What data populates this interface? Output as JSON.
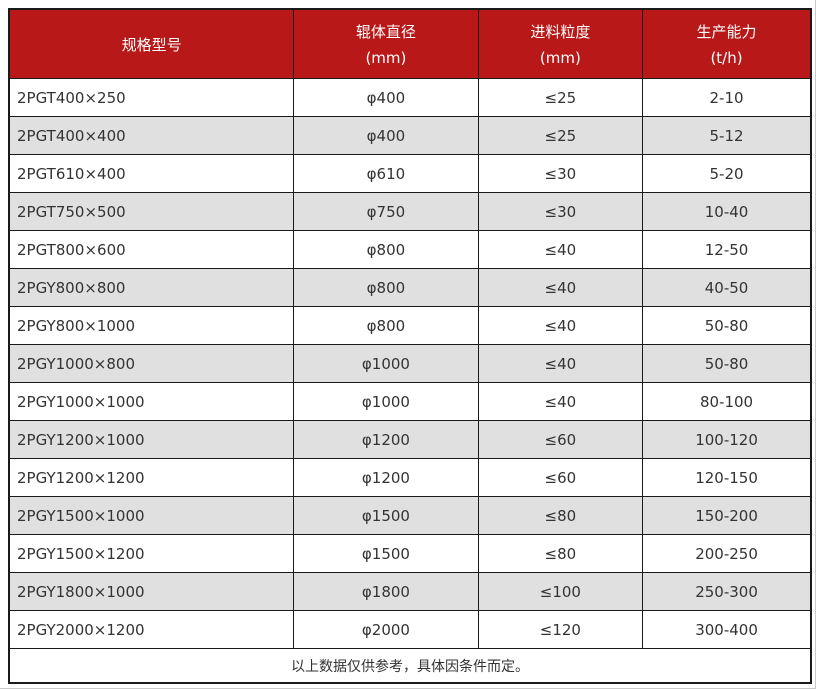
{
  "table": {
    "title_semantic": "roller-crusher-specifications",
    "columns": [
      {
        "label": "规格型号",
        "unit": ""
      },
      {
        "label": "辊体直径",
        "unit": "(mm)"
      },
      {
        "label": "进料粒度",
        "unit": "(mm)"
      },
      {
        "label": "生产能力",
        "unit": "(t/h)"
      }
    ],
    "rows": [
      [
        "2PGT400×250",
        "φ400",
        "≤25",
        "2-10"
      ],
      [
        "2PGT400×400",
        "φ400",
        "≤25",
        "5-12"
      ],
      [
        "2PGT610×400",
        "φ610",
        "≤30",
        "5-20"
      ],
      [
        "2PGT750×500",
        "φ750",
        "≤30",
        "10-40"
      ],
      [
        "2PGT800×600",
        "φ800",
        "≤40",
        "12-50"
      ],
      [
        "2PGY800×800",
        "φ800",
        "≤40",
        "40-50"
      ],
      [
        "2PGY800×1000",
        "φ800",
        "≤40",
        "50-80"
      ],
      [
        "2PGY1000×800",
        "φ1000",
        "≤40",
        "50-80"
      ],
      [
        "2PGY1000×1000",
        "φ1000",
        "≤40",
        "80-100"
      ],
      [
        "2PGY1200×1000",
        "φ1200",
        "≤60",
        "100-120"
      ],
      [
        "2PGY1200×1200",
        "φ1200",
        "≤60",
        "120-150"
      ],
      [
        "2PGY1500×1000",
        "φ1500",
        "≤80",
        "150-200"
      ],
      [
        "2PGY1500×1200",
        "φ1500",
        "≤80",
        "200-250"
      ],
      [
        "2PGY1800×1000",
        "φ1800",
        "≤100",
        "250-300"
      ],
      [
        "2PGY2000×1200",
        "φ2000",
        "≤120",
        "300-400"
      ]
    ],
    "footer": "以上数据仅供参考，具体因条件而定。",
    "colors": {
      "header_bg": "#b81818",
      "header_text": "#ffffff",
      "row_bg": "#ffffff",
      "row_alt_bg": "#e0e0e0",
      "border": "#1a1a1a",
      "text": "#333333"
    }
  }
}
